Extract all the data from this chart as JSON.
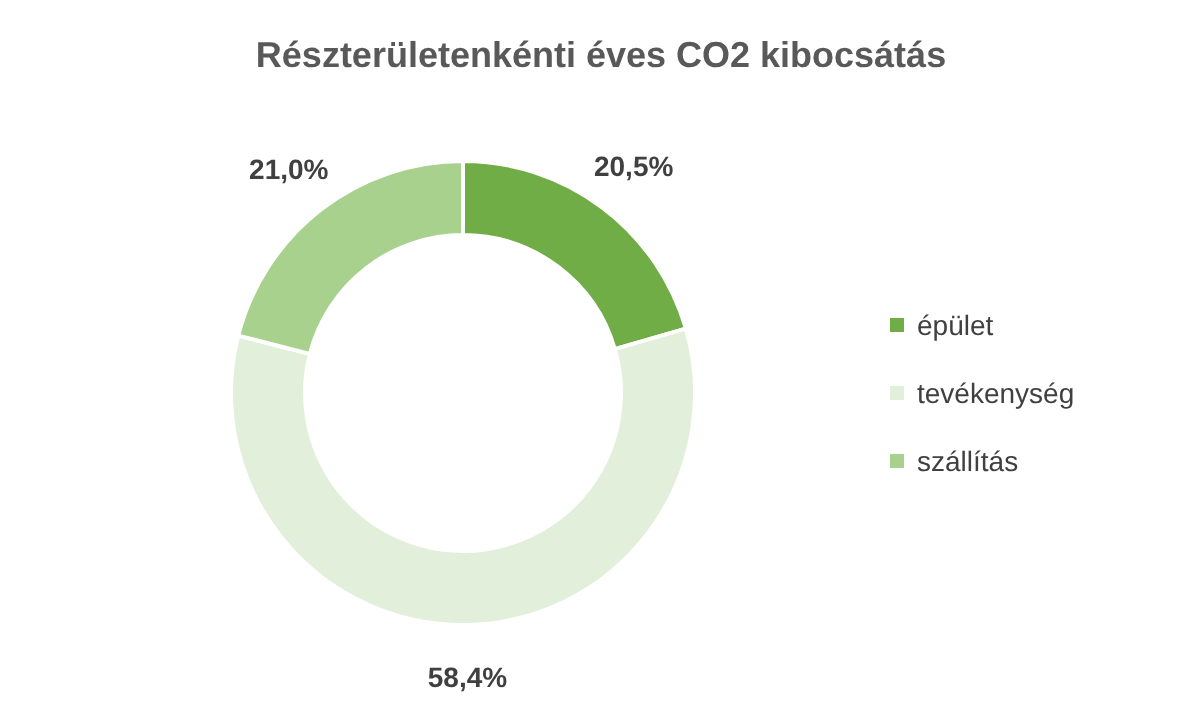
{
  "chart_data": {
    "type": "donut",
    "title": "Részterületenkénti éves CO2 kibocsátás",
    "categories": [
      "épület",
      "tevékenység",
      "szállítás"
    ],
    "values": [
      20.5,
      58.4,
      21.0
    ],
    "colors": [
      "#70ad47",
      "#e2efda",
      "#a9d18e"
    ],
    "value_labels": [
      "20,5%",
      "58,4%",
      "21,0%"
    ],
    "legend": "right"
  }
}
